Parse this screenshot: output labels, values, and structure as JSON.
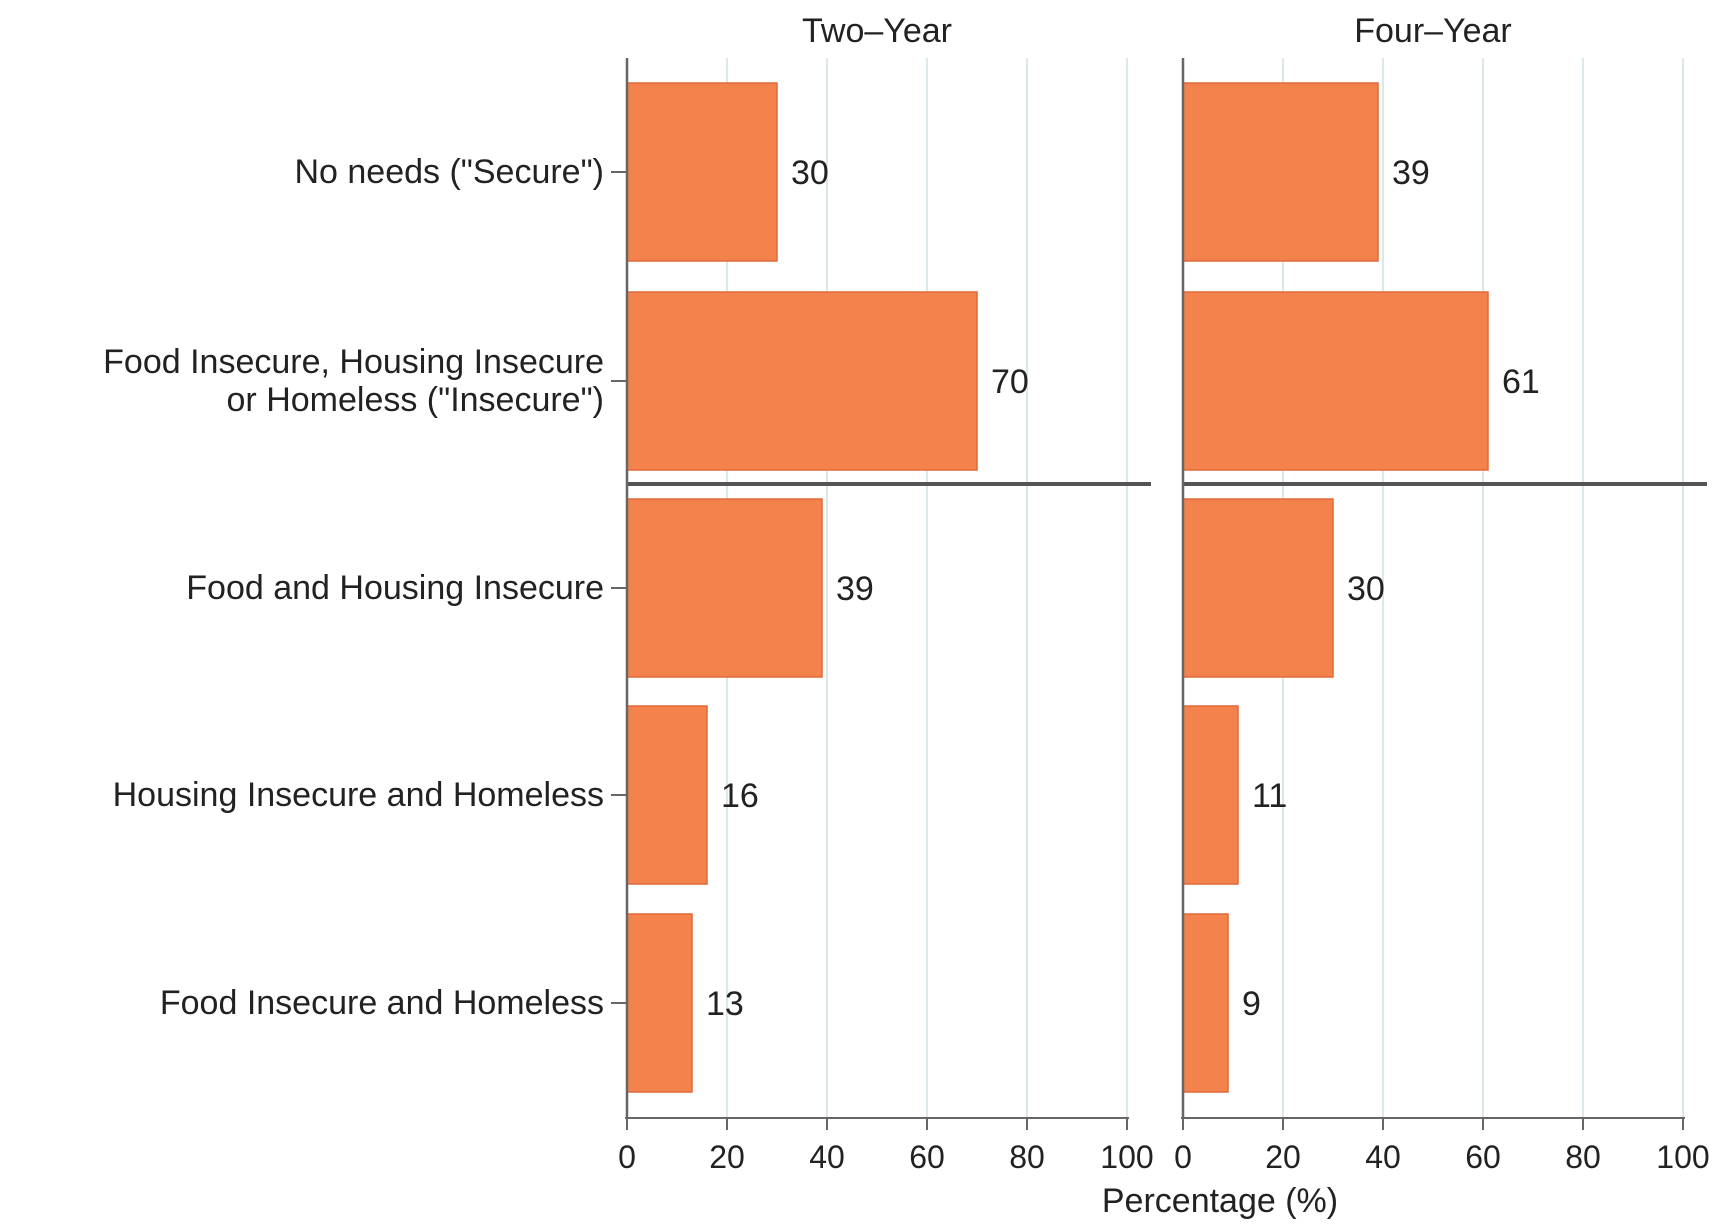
{
  "chart_data": {
    "type": "bar",
    "orientation": "horizontal",
    "layout": "faceted",
    "categories": [
      [
        "No needs (\"Secure\")"
      ],
      [
        "Food Insecure, Housing Insecure",
        "or Homeless (\"Insecure\")"
      ],
      [
        "Food and Housing Insecure"
      ],
      [
        "Housing Insecure and Homeless"
      ],
      [
        "Food Insecure and Homeless"
      ]
    ],
    "separator_after_index": 1,
    "panels": [
      {
        "title": "Two–Year",
        "values": [
          30,
          70,
          39,
          16,
          13
        ]
      },
      {
        "title": "Four–Year",
        "values": [
          39,
          61,
          30,
          11,
          9
        ]
      }
    ],
    "xlim": [
      0,
      100
    ],
    "xticks": [
      "0",
      "20",
      "40",
      "60",
      "80",
      "100"
    ],
    "xlabel": "Percentage (%)",
    "bar_color": "#f4824c",
    "grid": "vertical"
  }
}
